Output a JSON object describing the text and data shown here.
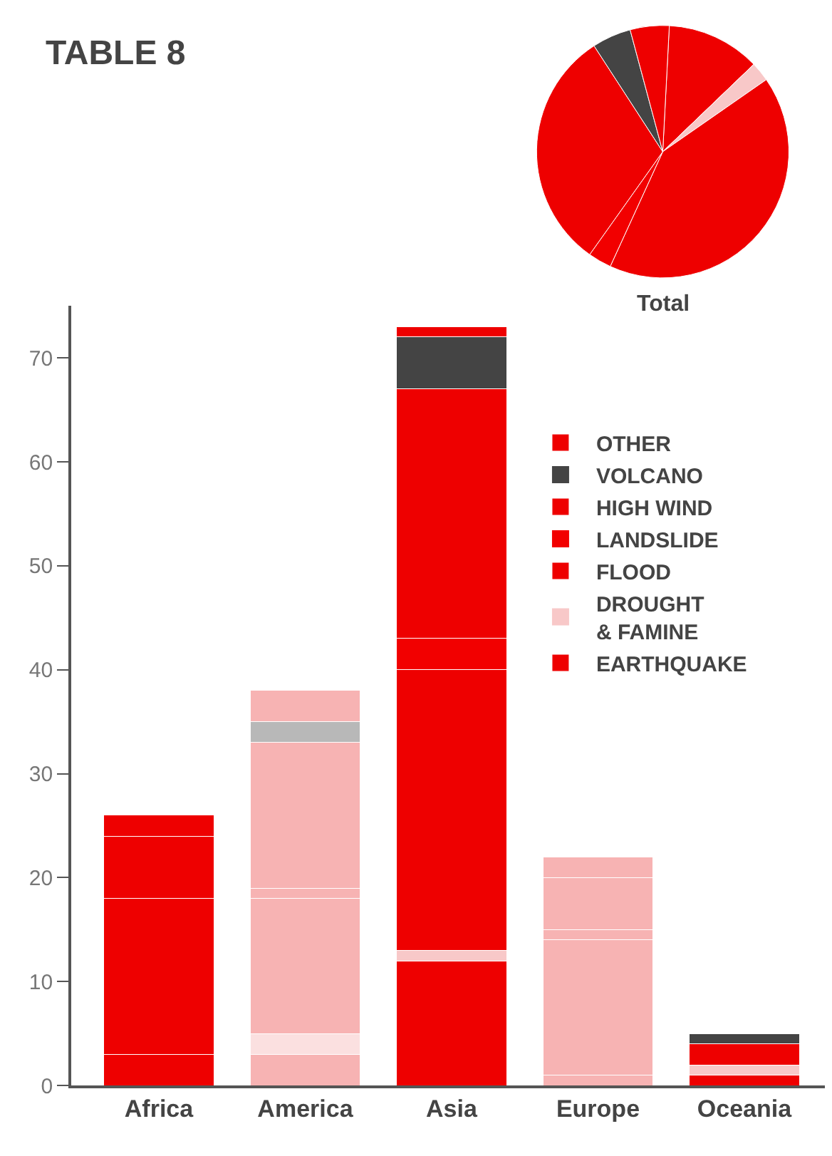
{
  "chart_data": [
    {
      "type": "bar",
      "title": "TABLE 8",
      "stacked": true,
      "legend": "right",
      "categories": [
        "Africa",
        "America",
        "Asia",
        "Europe",
        "Oceania"
      ],
      "ylim": [
        0,
        75
      ],
      "yticks": [
        0,
        10,
        20,
        30,
        40,
        50,
        60,
        70
      ],
      "series": [
        {
          "name": "EARTHQUAKE",
          "colors": [
            "#ee0000",
            "#f7b3b3",
            "#ee0000",
            "#f7b3b3",
            "#ee0000"
          ],
          "values": [
            3,
            3,
            12,
            1,
            1
          ]
        },
        {
          "name": "DROUGHT\n& FAMINE",
          "colors": [
            "#f8c8c8",
            "#fbe0e0",
            "#f8c8c8",
            "#fbe0e0",
            "#f8c8c8"
          ],
          "values": [
            0,
            2,
            1,
            0,
            1
          ]
        },
        {
          "name": "FLOOD",
          "colors": [
            "#ee0000",
            "#f7b3b3",
            "#ee0000",
            "#f7b3b3",
            "#ee0000"
          ],
          "values": [
            15,
            13,
            27,
            13,
            0
          ]
        },
        {
          "name": "LANDSLIDE",
          "colors": [
            "#f20000",
            "#f7b3b3",
            "#f20000",
            "#f7b3b3",
            "#f20000"
          ],
          "values": [
            0,
            1,
            3,
            1,
            0
          ]
        },
        {
          "name": "HIGH WIND",
          "colors": [
            "#ee0000",
            "#f7b3b3",
            "#ee0000",
            "#f7b3b3",
            "#ee0000"
          ],
          "values": [
            6,
            14,
            24,
            5,
            2
          ]
        },
        {
          "name": "VOLCANO",
          "colors": [
            "#444444",
            "#b8b8b8",
            "#444444",
            "#b8b8b8",
            "#444444"
          ],
          "values": [
            0,
            2,
            5,
            0,
            1
          ]
        },
        {
          "name": "OTHER",
          "colors": [
            "#ee0000",
            "#f7b3b3",
            "#ee0000",
            "#f7b3b3",
            "#ee0000"
          ],
          "values": [
            2,
            3,
            1,
            2,
            0
          ]
        }
      ]
    },
    {
      "type": "pie",
      "title": "Total",
      "categories": [
        null,
        null,
        null,
        null,
        null,
        null,
        null
      ],
      "values": [
        12,
        2.5,
        41.5,
        3,
        31,
        5,
        5
      ],
      "colors": [
        "#ee0000",
        "#f8c8c8",
        "#ee0000",
        "#f20000",
        "#ee0000",
        "#444444",
        "#ee0000"
      ]
    }
  ]
}
